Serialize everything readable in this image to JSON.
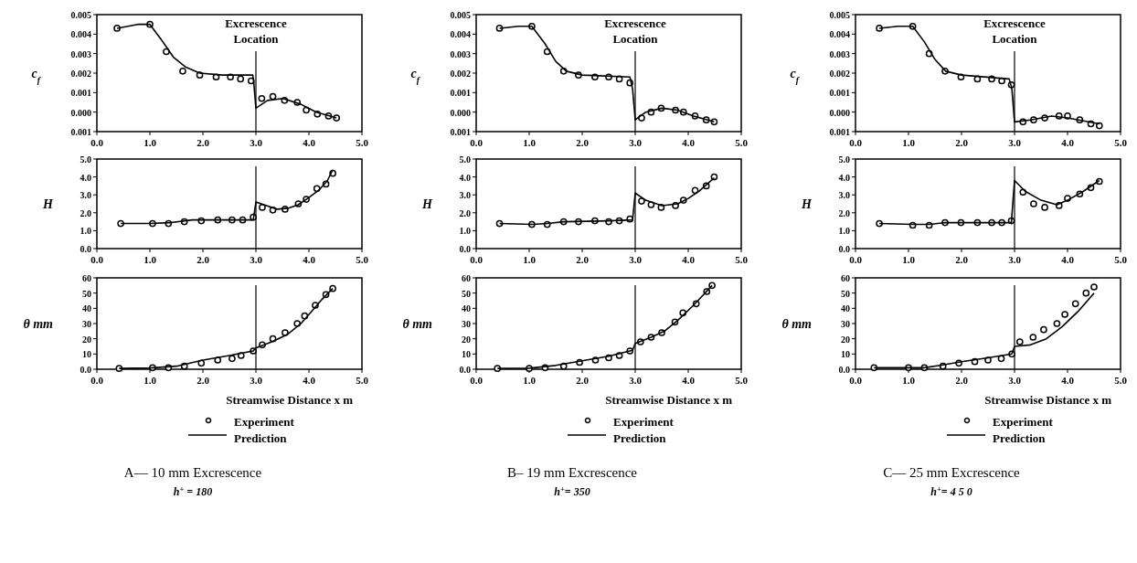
{
  "chart_data": [
    {
      "type": "line",
      "ylabel": "c$_{f}$",
      "xlim": [
        0,
        5
      ],
      "xticks": [
        {
          "value": 0,
          "label": "0.0"
        },
        {
          "value": 1,
          "label": "1.0"
        },
        {
          "value": 2,
          "label": "2.0"
        },
        {
          "value": 3,
          "label": "3.0"
        },
        {
          "value": 4,
          "label": "4.0"
        },
        {
          "value": 5,
          "label": "5.0"
        }
      ],
      "ylim": [
        -0.001,
        0.005
      ],
      "yticks": [
        {
          "value": -0.001,
          "label": "0.001"
        },
        {
          "value": 0,
          "label": "0.000"
        },
        0.001,
        0.002,
        0.003,
        0.004,
        0.005
      ],
      "ref_lines": [
        {
          "axis": "x",
          "value": 3,
          "label": "Excrescence Location"
        }
      ],
      "series": [
        {
          "type": "scatter",
          "marker": "circle",
          "color": "#000000",
          "x": [
            0.38,
            1.0,
            1.31,
            1.62,
            1.94,
            2.25,
            2.52,
            2.71,
            2.91,
            3.11,
            3.32,
            3.54,
            3.78,
            3.95,
            4.16,
            4.37,
            4.52
          ],
          "values": [
            0.0043,
            0.0045,
            0.0031,
            0.0021,
            0.0019,
            0.0018,
            0.0018,
            0.0017,
            0.0016,
            0.0007,
            0.0008,
            0.0006,
            0.0005,
            0.0001,
            -0.0001,
            -0.0002,
            -0.0003
          ]
        },
        {
          "type": "line",
          "color": "#000000",
          "x": [
            0.38,
            0.77,
            1.0,
            1.22,
            1.45,
            1.68,
            1.94,
            2.37,
            2.94,
            2.96,
            3.0,
            3.22,
            3.51,
            3.85,
            4.14,
            4.52
          ],
          "values": [
            0.0043,
            0.0045,
            0.0045,
            0.0037,
            0.0028,
            0.0023,
            0.002,
            0.0019,
            0.0019,
            0.0015,
            0.0002,
            0.0006,
            0.0007,
            0.0004,
            0.0,
            -0.0003
          ]
        }
      ]
    },
    {
      "type": "line",
      "ylabel": "H",
      "xlim": [
        0,
        5
      ],
      "xticks": [
        {
          "value": 0,
          "label": "0.0"
        },
        {
          "value": 1,
          "label": "1.0"
        },
        {
          "value": 2,
          "label": "2.0"
        },
        {
          "value": 3,
          "label": "3.0"
        },
        {
          "value": 4,
          "label": "4.0"
        },
        {
          "value": 5,
          "label": "5.0"
        }
      ],
      "ylim": [
        0,
        5
      ],
      "yticks": [
        {
          "value": 0,
          "label": "0.0"
        },
        {
          "value": 1,
          "label": "1.0"
        },
        {
          "value": 2,
          "label": "2.0"
        },
        {
          "value": 3,
          "label": "3.0"
        },
        {
          "value": 4,
          "label": "4.0"
        },
        {
          "value": 5,
          "label": "5.0"
        }
      ],
      "ref_lines": [
        {
          "axis": "x",
          "value": 3
        }
      ],
      "series": [
        {
          "type": "scatter",
          "marker": "circle",
          "color": "#000000",
          "x": [
            0.45,
            1.05,
            1.35,
            1.65,
            1.97,
            2.28,
            2.55,
            2.75,
            2.95,
            3.12,
            3.32,
            3.55,
            3.8,
            3.95,
            4.15,
            4.32,
            4.45
          ],
          "values": [
            1.4,
            1.4,
            1.4,
            1.5,
            1.55,
            1.6,
            1.6,
            1.6,
            1.75,
            2.3,
            2.15,
            2.2,
            2.5,
            2.75,
            3.35,
            3.6,
            4.2
          ]
        },
        {
          "type": "line",
          "color": "#000000",
          "x": [
            0.45,
            1.0,
            1.4,
            1.8,
            2.5,
            2.95,
            3.0,
            3.2,
            3.4,
            3.6,
            3.8,
            4.0,
            4.2,
            4.35,
            4.45
          ],
          "values": [
            1.4,
            1.4,
            1.45,
            1.6,
            1.6,
            1.6,
            2.6,
            2.4,
            2.2,
            2.25,
            2.45,
            2.85,
            3.3,
            3.8,
            4.4
          ]
        }
      ]
    },
    {
      "type": "line",
      "ylabel": "θ  mm",
      "xlabel": "Streamwise Distance x   m",
      "legend": "bottom",
      "annotations": [
        "A—  10 mm Excrescence",
        "h$^{+}$ =  180"
      ],
      "xlim": [
        0,
        5
      ],
      "xticks": [
        {
          "value": 0,
          "label": "0.0"
        },
        {
          "value": 1,
          "label": "1.0"
        },
        {
          "value": 2,
          "label": "2.0"
        },
        {
          "value": 3,
          "label": "3.0"
        },
        {
          "value": 4,
          "label": "4.0"
        },
        {
          "value": 5,
          "label": "5.0"
        }
      ],
      "ylim": [
        0,
        60
      ],
      "yticks": [
        {
          "value": 0,
          "label": "0.0"
        },
        10,
        20,
        30,
        40,
        50,
        60
      ],
      "ref_lines": [
        {
          "axis": "x",
          "value": 3
        }
      ],
      "series": [
        {
          "name": "Experiment",
          "type": "scatter",
          "marker": "circle",
          "color": "#000000",
          "x": [
            0.42,
            1.05,
            1.35,
            1.65,
            1.97,
            2.28,
            2.55,
            2.72,
            2.95,
            3.12,
            3.32,
            3.55,
            3.78,
            3.92,
            4.12,
            4.32,
            4.45
          ],
          "values": [
            0.5,
            1,
            1,
            2,
            4,
            6,
            7,
            9,
            12,
            16,
            20,
            24,
            30,
            35,
            42,
            49,
            53
          ]
        },
        {
          "name": "Prediction",
          "type": "line",
          "color": "#000000",
          "x": [
            0.42,
            1.0,
            1.5,
            2.0,
            2.5,
            2.95,
            3.0,
            3.3,
            3.6,
            3.85,
            4.05,
            4.25,
            4.45
          ],
          "values": [
            0.5,
            0.8,
            2,
            6,
            9,
            12,
            14,
            18,
            23,
            30,
            38,
            46,
            53
          ]
        }
      ]
    },
    {
      "type": "line",
      "ylabel": "c$_{f}$",
      "xlim": [
        0,
        5
      ],
      "xticks": [
        {
          "value": 0,
          "label": "0.0"
        },
        {
          "value": 1,
          "label": "1.0"
        },
        {
          "value": 2,
          "label": "2.0"
        },
        {
          "value": 3,
          "label": "3.0"
        },
        {
          "value": 4,
          "label": "4.0"
        },
        {
          "value": 5,
          "label": "5.0"
        }
      ],
      "ylim": [
        -0.001,
        0.005
      ],
      "yticks": [
        {
          "value": -0.001,
          "label": "0.001"
        },
        {
          "value": 0,
          "label": "0.000"
        },
        0.001,
        0.002,
        0.003,
        0.004,
        0.005
      ],
      "ref_lines": [
        {
          "axis": "x",
          "value": 3,
          "label": "Excrescence Location"
        }
      ],
      "series": [
        {
          "type": "scatter",
          "marker": "circle",
          "color": "#000000",
          "x": [
            0.44,
            1.05,
            1.34,
            1.65,
            1.93,
            2.24,
            2.5,
            2.7,
            2.9,
            3.12,
            3.3,
            3.49,
            3.76,
            3.91,
            4.13,
            4.34,
            4.49
          ],
          "values": [
            0.0043,
            0.0044,
            0.0031,
            0.0021,
            0.0019,
            0.0018,
            0.0018,
            0.0017,
            0.0015,
            -0.0003,
            0.0,
            0.0002,
            0.0001,
            0.0,
            -0.0002,
            -0.0004,
            -0.0005
          ]
        },
        {
          "type": "line",
          "color": "#000000",
          "x": [
            0.44,
            0.8,
            1.05,
            1.3,
            1.5,
            1.7,
            2.0,
            2.9,
            2.95,
            3.0,
            3.2,
            3.5,
            3.8,
            4.1,
            4.49
          ],
          "values": [
            0.0043,
            0.0044,
            0.0044,
            0.0035,
            0.0026,
            0.0021,
            0.0019,
            0.0018,
            0.0012,
            -0.0004,
            0.0,
            0.0002,
            0.0001,
            -0.0002,
            -0.0005
          ]
        }
      ]
    },
    {
      "type": "line",
      "ylabel": "H",
      "xlim": [
        0,
        5
      ],
      "xticks": [
        {
          "value": 0,
          "label": "0.0"
        },
        {
          "value": 1,
          "label": "1.0"
        },
        {
          "value": 2,
          "label": "2.0"
        },
        {
          "value": 3,
          "label": "3.0"
        },
        {
          "value": 4,
          "label": "4.0"
        },
        {
          "value": 5,
          "label": "5.0"
        }
      ],
      "ylim": [
        0,
        5
      ],
      "yticks": [
        {
          "value": 0,
          "label": "0.0"
        },
        {
          "value": 1,
          "label": "1.0"
        },
        {
          "value": 2,
          "label": "2.0"
        },
        {
          "value": 3,
          "label": "3.0"
        },
        {
          "value": 4,
          "label": "4.0"
        },
        {
          "value": 5,
          "label": "5.0"
        }
      ],
      "ref_lines": [
        {
          "axis": "x",
          "value": 3
        }
      ],
      "series": [
        {
          "type": "scatter",
          "marker": "circle",
          "color": "#000000",
          "x": [
            0.44,
            1.05,
            1.34,
            1.65,
            1.93,
            2.24,
            2.5,
            2.7,
            2.9,
            3.12,
            3.3,
            3.49,
            3.76,
            3.91,
            4.13,
            4.34,
            4.49
          ],
          "values": [
            1.4,
            1.35,
            1.35,
            1.5,
            1.5,
            1.55,
            1.5,
            1.55,
            1.65,
            2.65,
            2.45,
            2.3,
            2.4,
            2.7,
            3.25,
            3.5,
            4.0
          ]
        },
        {
          "type": "line",
          "color": "#000000",
          "x": [
            0.44,
            1.05,
            1.35,
            1.65,
            2.5,
            2.95,
            3.0,
            3.2,
            3.5,
            3.8,
            4.0,
            4.2,
            4.49
          ],
          "values": [
            1.4,
            1.35,
            1.4,
            1.5,
            1.55,
            1.6,
            3.1,
            2.7,
            2.4,
            2.5,
            2.8,
            3.2,
            3.95
          ]
        }
      ]
    },
    {
      "type": "line",
      "ylabel": "θ  mm",
      "xlabel": "Streamwise Distance x   m",
      "legend": "bottom",
      "annotations": [
        "B–  19 mm Excrescence",
        "h$^{+}$=  350"
      ],
      "xlim": [
        0,
        5
      ],
      "xticks": [
        {
          "value": 0,
          "label": "0.0"
        },
        {
          "value": 1,
          "label": "1.0"
        },
        {
          "value": 2,
          "label": "2.0"
        },
        {
          "value": 3,
          "label": "3.0"
        },
        {
          "value": 4,
          "label": "4.0"
        },
        {
          "value": 5,
          "label": "5.0"
        }
      ],
      "ylim": [
        0,
        60
      ],
      "yticks": [
        {
          "value": 0,
          "label": "0.0"
        },
        10,
        20,
        30,
        40,
        50,
        60
      ],
      "ref_lines": [
        {
          "axis": "x",
          "value": 3
        }
      ],
      "series": [
        {
          "name": "Experiment",
          "type": "scatter",
          "marker": "circle",
          "color": "#000000",
          "x": [
            0.4,
            1.0,
            1.3,
            1.65,
            1.95,
            2.25,
            2.5,
            2.7,
            2.9,
            3.1,
            3.3,
            3.5,
            3.75,
            3.9,
            4.15,
            4.35,
            4.45
          ],
          "values": [
            0.5,
            0.5,
            1,
            2,
            4.5,
            6,
            7.5,
            9,
            12,
            18,
            21,
            24,
            31,
            37,
            43,
            51,
            55
          ]
        },
        {
          "name": "Prediction",
          "type": "line",
          "color": "#000000",
          "x": [
            0.4,
            1.0,
            1.5,
            2.0,
            2.5,
            2.95,
            3.0,
            3.3,
            3.55,
            3.8,
            4.1,
            4.45
          ],
          "values": [
            0.5,
            0.7,
            2.5,
            5.5,
            8.5,
            12.5,
            17,
            21,
            25,
            32,
            42,
            55
          ]
        }
      ]
    },
    {
      "type": "line",
      "ylabel": "c$_{f}$",
      "xlim": [
        0,
        5
      ],
      "xticks": [
        {
          "value": 0,
          "label": "0.0"
        },
        {
          "value": 1,
          "label": "1.0"
        },
        {
          "value": 2,
          "label": "2.0"
        },
        {
          "value": 3,
          "label": "3.0"
        },
        {
          "value": 4,
          "label": "4.0"
        },
        {
          "value": 5,
          "label": "5.0"
        }
      ],
      "ylim": [
        -0.001,
        0.005
      ],
      "yticks": [
        {
          "value": -0.001,
          "label": "0.001"
        },
        {
          "value": 0,
          "label": "0.000"
        },
        0.001,
        0.002,
        0.003,
        0.004,
        0.005
      ],
      "ref_lines": [
        {
          "axis": "x",
          "value": 3,
          "label": "Excrescence Location"
        }
      ],
      "series": [
        {
          "type": "scatter",
          "marker": "circle",
          "color": "#000000",
          "x": [
            0.45,
            1.08,
            1.39,
            1.69,
            1.99,
            2.3,
            2.57,
            2.76,
            2.94,
            3.16,
            3.36,
            3.57,
            3.84,
            4.0,
            4.23,
            4.44,
            4.6
          ],
          "values": [
            0.0043,
            0.0044,
            0.003,
            0.0021,
            0.0018,
            0.0017,
            0.0017,
            0.0016,
            0.0014,
            -0.0005,
            -0.0004,
            -0.0003,
            -0.0002,
            -0.0002,
            -0.0004,
            -0.0006,
            -0.0007
          ]
        },
        {
          "type": "line",
          "color": "#000000",
          "x": [
            0.45,
            0.8,
            1.08,
            1.3,
            1.5,
            1.7,
            2.0,
            2.9,
            2.95,
            3.0,
            3.3,
            3.7,
            4.0,
            4.6
          ],
          "values": [
            0.0043,
            0.0044,
            0.0044,
            0.0036,
            0.0027,
            0.0021,
            0.0019,
            0.0017,
            0.0012,
            -0.0005,
            -0.0004,
            -0.0002,
            -0.0003,
            -0.0006
          ]
        }
      ]
    },
    {
      "type": "line",
      "ylabel": "H",
      "xlim": [
        0,
        5
      ],
      "xticks": [
        {
          "value": 0,
          "label": "0.0"
        },
        {
          "value": 1,
          "label": "1.0"
        },
        {
          "value": 2,
          "label": "2.0"
        },
        {
          "value": 3,
          "label": "3.0"
        },
        {
          "value": 4,
          "label": "4.0"
        },
        {
          "value": 5,
          "label": "5.0"
        }
      ],
      "ylim": [
        0,
        5
      ],
      "yticks": [
        {
          "value": 0,
          "label": "0.0"
        },
        {
          "value": 1,
          "label": "1.0"
        },
        {
          "value": 2,
          "label": "2.0"
        },
        {
          "value": 3,
          "label": "3.0"
        },
        {
          "value": 4,
          "label": "4.0"
        },
        {
          "value": 5,
          "label": "5.0"
        }
      ],
      "ref_lines": [
        {
          "axis": "x",
          "value": 3
        }
      ],
      "series": [
        {
          "type": "scatter",
          "marker": "circle",
          "color": "#000000",
          "x": [
            0.45,
            1.08,
            1.39,
            1.69,
            1.99,
            2.3,
            2.57,
            2.76,
            2.94,
            3.16,
            3.36,
            3.57,
            3.84,
            4.0,
            4.23,
            4.44,
            4.6
          ],
          "values": [
            1.4,
            1.3,
            1.3,
            1.45,
            1.45,
            1.45,
            1.45,
            1.45,
            1.55,
            3.15,
            2.5,
            2.3,
            2.4,
            2.8,
            3.05,
            3.4,
            3.75
          ]
        },
        {
          "type": "line",
          "color": "#000000",
          "x": [
            0.45,
            1.08,
            1.4,
            1.7,
            2.94,
            3.0,
            3.2,
            3.5,
            3.8,
            4.0,
            4.3,
            4.6
          ],
          "values": [
            1.4,
            1.35,
            1.35,
            1.45,
            1.45,
            3.8,
            3.2,
            2.7,
            2.45,
            2.7,
            3.2,
            3.8
          ]
        }
      ]
    },
    {
      "type": "line",
      "ylabel": "θ  mm",
      "xlabel": "Streamwise Distance x   m",
      "legend": "bottom",
      "annotations": [
        "C—  25 mm Excrescence",
        "h$^{+}$=  4 5 0"
      ],
      "xlim": [
        0,
        5
      ],
      "xticks": [
        {
          "value": 0,
          "label": "0.0"
        },
        {
          "value": 1,
          "label": "1.0"
        },
        {
          "value": 2,
          "label": "2.0"
        },
        {
          "value": 3,
          "label": "3.0"
        },
        {
          "value": 4,
          "label": "4.0"
        },
        {
          "value": 5,
          "label": "5.0"
        }
      ],
      "ylim": [
        0,
        60
      ],
      "yticks": [
        {
          "value": 0,
          "label": "0.0"
        },
        10,
        20,
        30,
        40,
        50,
        60
      ],
      "ref_lines": [
        {
          "axis": "x",
          "value": 3
        }
      ],
      "series": [
        {
          "name": "Experiment",
          "type": "scatter",
          "marker": "circle",
          "color": "#000000",
          "x": [
            0.35,
            1.0,
            1.3,
            1.65,
            1.95,
            2.25,
            2.5,
            2.75,
            2.95,
            3.1,
            3.35,
            3.55,
            3.8,
            3.95,
            4.15,
            4.35,
            4.5
          ],
          "values": [
            1,
            1,
            1,
            2,
            4,
            5,
            6,
            7,
            10,
            18,
            21,
            26,
            30,
            36,
            43,
            50,
            54
          ]
        },
        {
          "name": "Prediction",
          "type": "line",
          "color": "#000000",
          "x": [
            0.35,
            1.3,
            1.6,
            2.0,
            2.5,
            2.95,
            3.0,
            3.3,
            3.6,
            3.9,
            4.2,
            4.5
          ],
          "values": [
            1,
            1,
            2.5,
            5,
            7.5,
            10,
            15,
            16,
            20,
            28,
            38,
            50
          ]
        }
      ]
    }
  ]
}
